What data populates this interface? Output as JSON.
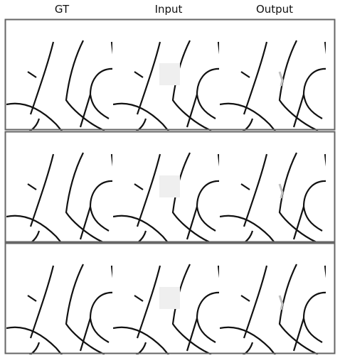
{
  "columns": [
    {
      "label": "GT",
      "content": "ground-truth"
    },
    {
      "label": "Input",
      "content": "masked"
    },
    {
      "label": "Output",
      "content": "inpainted"
    }
  ],
  "rows": 3,
  "colors": {
    "frame": "#666666",
    "line": "#111111",
    "mask": "#efefef",
    "artifact": "#bfbfbf",
    "background": "#ffffff"
  }
}
